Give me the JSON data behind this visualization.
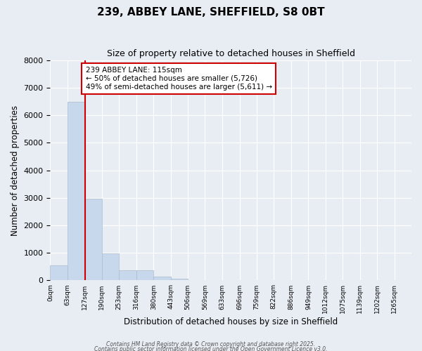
{
  "title": "239, ABBEY LANE, SHEFFIELD, S8 0BT",
  "subtitle": "Size of property relative to detached houses in Sheffield",
  "xlabel": "Distribution of detached houses by size in Sheffield",
  "ylabel": "Number of detached properties",
  "bar_color": "#c8d8ec",
  "bar_edgecolor": "#aabccc",
  "background_color": "#e8edf4",
  "grid_color": "#ffffff",
  "vline_x": 127,
  "vline_color": "#cc0000",
  "bin_edges": [
    0,
    63,
    127,
    190,
    253,
    316,
    380,
    443,
    506,
    569,
    633,
    696,
    759,
    822,
    886,
    949,
    1012,
    1075,
    1139,
    1202,
    1265
  ],
  "bar_heights": [
    550,
    6480,
    2970,
    970,
    380,
    380,
    150,
    70,
    10,
    3,
    1,
    0,
    0,
    0,
    0,
    0,
    0,
    0,
    0,
    0
  ],
  "ylim": [
    0,
    8000
  ],
  "yticks": [
    0,
    1000,
    2000,
    3000,
    4000,
    5000,
    6000,
    7000,
    8000
  ],
  "annotation_text": "239 ABBEY LANE: 115sqm\n← 50% of detached houses are smaller (5,726)\n49% of semi-detached houses are larger (5,611) →",
  "annotation_box_color": "#ffffff",
  "annotation_box_edgecolor": "#cc0000",
  "footer_line1": "Contains HM Land Registry data © Crown copyright and database right 2025.",
  "footer_line2": "Contains public sector information licensed under the Open Government Licence v3.0.",
  "tick_labels": [
    "0sqm",
    "63sqm",
    "127sqm",
    "190sqm",
    "253sqm",
    "316sqm",
    "380sqm",
    "443sqm",
    "506sqm",
    "569sqm",
    "633sqm",
    "696sqm",
    "759sqm",
    "822sqm",
    "886sqm",
    "949sqm",
    "1012sqm",
    "1075sqm",
    "1139sqm",
    "1202sqm",
    "1265sqm"
  ]
}
